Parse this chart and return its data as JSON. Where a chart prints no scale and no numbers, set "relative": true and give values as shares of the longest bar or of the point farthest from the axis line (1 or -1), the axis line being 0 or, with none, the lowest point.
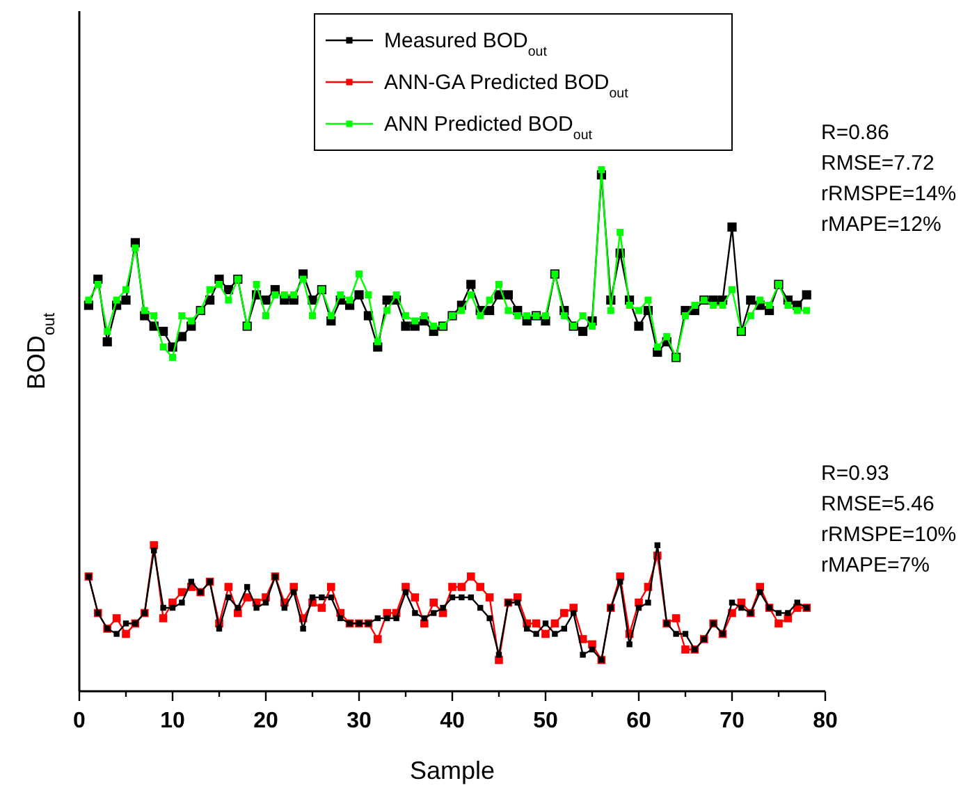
{
  "chart_data": {
    "type": "line",
    "relative": true,
    "xlabel": "Sample",
    "ylabel": "BOD$_{out}$",
    "legend": "top",
    "marker": "square",
    "line_style": "solid",
    "xlim": [
      0,
      80
    ],
    "xticks": [
      0,
      {
        "value": 5,
        "label": null
      },
      10,
      {
        "value": 15,
        "label": null
      },
      20,
      {
        "value": 25,
        "label": null
      },
      30,
      {
        "value": 35,
        "label": null
      },
      40,
      {
        "value": 45,
        "label": null
      },
      50,
      {
        "value": 55,
        "label": null
      },
      60,
      {
        "value": 65,
        "label": null
      },
      70,
      {
        "value": 75,
        "label": null
      },
      80
    ],
    "x": [
      1,
      2,
      3,
      4,
      5,
      6,
      7,
      8,
      9,
      10,
      11,
      12,
      13,
      14,
      15,
      16,
      17,
      18,
      19,
      20,
      21,
      22,
      23,
      24,
      25,
      26,
      27,
      28,
      29,
      30,
      31,
      32,
      33,
      34,
      35,
      36,
      37,
      38,
      39,
      40,
      41,
      42,
      43,
      44,
      45,
      46,
      47,
      48,
      49,
      50,
      51,
      52,
      53,
      54,
      55,
      56,
      57,
      58,
      59,
      60,
      61,
      62,
      63,
      64,
      65,
      66,
      67,
      68,
      69,
      70,
      71,
      72,
      73,
      74,
      75,
      76,
      77,
      78
    ],
    "series": [
      {
        "name": "Measured BOD$_{out}$",
        "color": "#000000",
        "values": [
          0.74,
          0.79,
          0.67,
          0.74,
          0.75,
          0.86,
          0.72,
          0.7,
          0.69,
          0.66,
          0.68,
          0.7,
          0.73,
          0.75,
          0.79,
          0.77,
          0.79,
          0.7,
          0.76,
          0.75,
          0.77,
          0.75,
          0.75,
          0.8,
          0.75,
          0.77,
          0.71,
          0.75,
          0.74,
          0.76,
          0.72,
          0.66,
          0.75,
          0.75,
          0.7,
          0.7,
          0.71,
          0.69,
          0.7,
          0.72,
          0.74,
          0.78,
          0.73,
          0.73,
          0.76,
          0.76,
          0.73,
          0.71,
          0.72,
          0.71,
          0.8,
          0.73,
          0.7,
          0.69,
          0.71,
          0.99,
          0.75,
          0.84,
          0.75,
          0.7,
          0.73,
          0.65,
          0.67,
          0.64,
          0.73,
          0.73,
          0.75,
          0.75,
          0.75,
          0.89,
          0.69,
          0.75,
          0.74,
          0.73,
          0.78,
          0.75,
          0.74,
          0.76
        ]
      },
      {
        "name": "ANN-GA Predicted BOD$_{out}$",
        "color": "#ff0000",
        "values": [
          0.22,
          0.15,
          0.12,
          0.14,
          0.11,
          0.13,
          0.15,
          0.28,
          0.14,
          0.17,
          0.19,
          0.2,
          0.19,
          0.21,
          0.13,
          0.2,
          0.15,
          0.18,
          0.17,
          0.18,
          0.22,
          0.17,
          0.2,
          0.14,
          0.17,
          0.16,
          0.2,
          0.15,
          0.13,
          0.13,
          0.13,
          0.1,
          0.15,
          0.15,
          0.2,
          0.18,
          0.13,
          0.17,
          0.15,
          0.2,
          0.2,
          0.22,
          0.2,
          0.18,
          0.06,
          0.17,
          0.18,
          0.13,
          0.13,
          0.11,
          0.13,
          0.15,
          0.16,
          0.1,
          0.09,
          0.06,
          0.16,
          0.22,
          0.11,
          0.17,
          0.2,
          0.26,
          0.13,
          0.14,
          0.08,
          0.08,
          0.1,
          0.13,
          0.11,
          0.15,
          0.17,
          0.15,
          0.2,
          0.16,
          0.13,
          0.14,
          0.16,
          0.16
        ]
      },
      {
        "name": "ANN Predicted BOD$_{out}$",
        "color": "#00ff00",
        "values": [
          0.75,
          0.78,
          0.69,
          0.75,
          0.77,
          0.85,
          0.73,
          0.72,
          0.66,
          0.64,
          0.72,
          0.71,
          0.73,
          0.77,
          0.78,
          0.75,
          0.79,
          0.7,
          0.78,
          0.72,
          0.76,
          0.76,
          0.76,
          0.79,
          0.72,
          0.77,
          0.72,
          0.76,
          0.75,
          0.8,
          0.76,
          0.67,
          0.73,
          0.76,
          0.72,
          0.71,
          0.72,
          0.7,
          0.7,
          0.72,
          0.73,
          0.76,
          0.72,
          0.75,
          0.78,
          0.73,
          0.72,
          0.72,
          0.72,
          0.72,
          0.8,
          0.72,
          0.7,
          0.72,
          0.7,
          1.0,
          0.73,
          0.88,
          0.74,
          0.73,
          0.75,
          0.66,
          0.68,
          0.64,
          0.72,
          0.74,
          0.75,
          0.74,
          0.74,
          0.77,
          0.69,
          0.72,
          0.75,
          0.74,
          0.78,
          0.74,
          0.73,
          0.73
        ]
      },
      {
        "color": "#000000",
        "values": [
          0.22,
          0.15,
          0.12,
          0.11,
          0.13,
          0.13,
          0.15,
          0.27,
          0.16,
          0.16,
          0.17,
          0.21,
          0.19,
          0.21,
          0.12,
          0.18,
          0.16,
          0.2,
          0.16,
          0.17,
          0.22,
          0.16,
          0.19,
          0.12,
          0.18,
          0.18,
          0.18,
          0.14,
          0.13,
          0.13,
          0.13,
          0.14,
          0.14,
          0.14,
          0.19,
          0.15,
          0.14,
          0.15,
          0.16,
          0.18,
          0.18,
          0.18,
          0.16,
          0.14,
          0.07,
          0.17,
          0.17,
          0.12,
          0.11,
          0.13,
          0.11,
          0.12,
          0.15,
          0.07,
          0.08,
          0.06,
          0.16,
          0.21,
          0.09,
          0.16,
          0.17,
          0.28,
          0.13,
          0.11,
          0.11,
          0.08,
          0.1,
          0.13,
          0.11,
          0.17,
          0.16,
          0.15,
          0.19,
          0.16,
          0.15,
          0.15,
          0.17,
          0.16
        ]
      }
    ],
    "annotations": [
      "R=0.86\nRMSE=7.72\nrRMSPE=14%\nrMAPE=12%",
      "R=0.93\nRMSE=5.46\nrRMSPE=10%\nrMAPE=7%"
    ]
  }
}
